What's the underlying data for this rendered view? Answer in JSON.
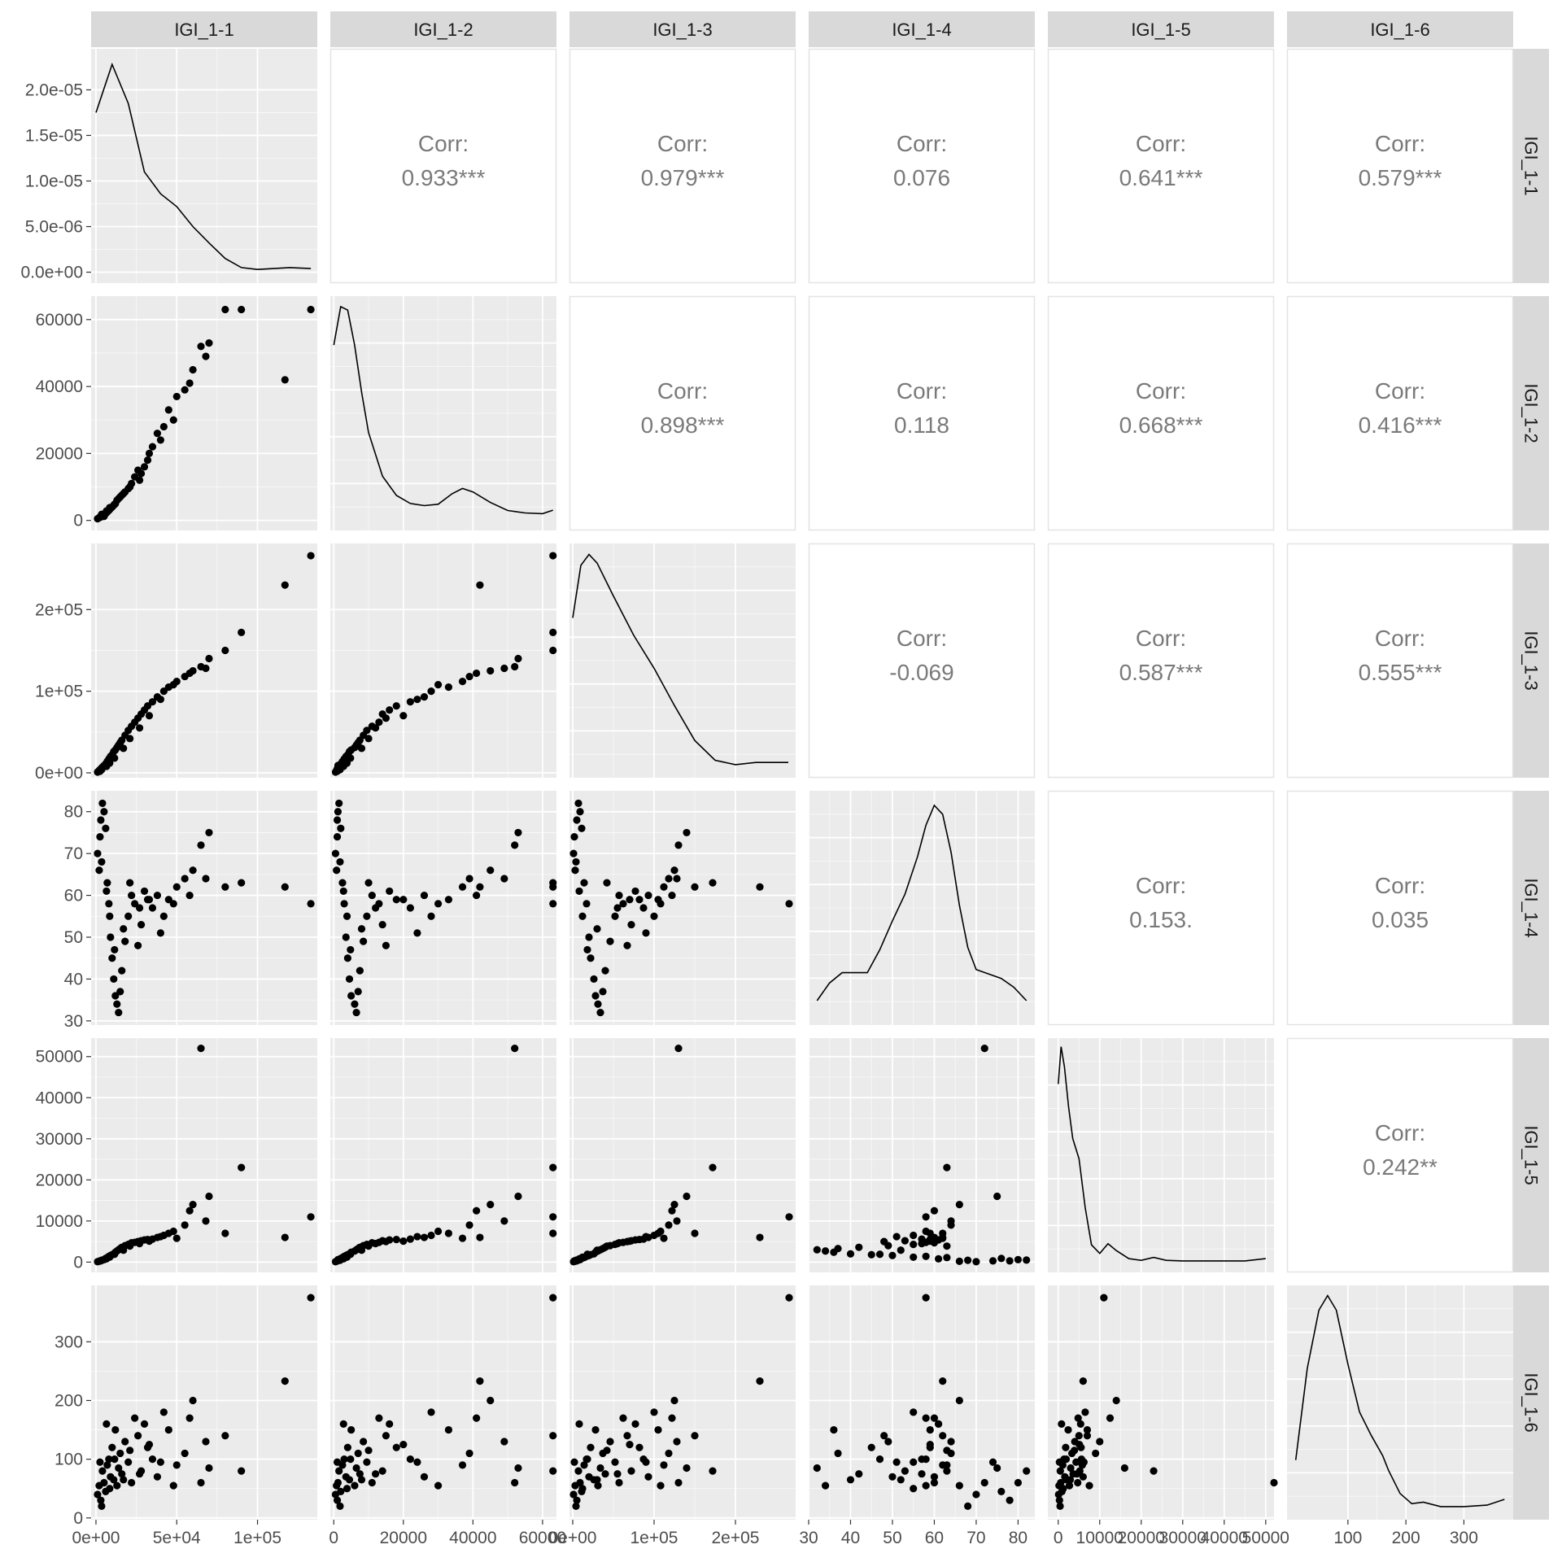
{
  "chart_data": {
    "type": "scatter",
    "title": "",
    "variables": [
      "IGI_1-1",
      "IGI_1-2",
      "IGI_1-3",
      "IGI_1-4",
      "IGI_1-5",
      "IGI_1-6"
    ],
    "corr_label": "Corr:",
    "correlations": [
      {
        "row": 0,
        "col": 1,
        "value": "0.933***"
      },
      {
        "row": 0,
        "col": 2,
        "value": "0.979***"
      },
      {
        "row": 0,
        "col": 3,
        "value": "0.076"
      },
      {
        "row": 0,
        "col": 4,
        "value": "0.641***"
      },
      {
        "row": 0,
        "col": 5,
        "value": "0.579***"
      },
      {
        "row": 1,
        "col": 2,
        "value": "0.898***"
      },
      {
        "row": 1,
        "col": 3,
        "value": "0.118"
      },
      {
        "row": 1,
        "col": 4,
        "value": "0.668***"
      },
      {
        "row": 1,
        "col": 5,
        "value": "0.416***"
      },
      {
        "row": 2,
        "col": 3,
        "value": "-0.069"
      },
      {
        "row": 2,
        "col": 4,
        "value": "0.587***"
      },
      {
        "row": 2,
        "col": 5,
        "value": "0.555***"
      },
      {
        "row": 3,
        "col": 4,
        "value": "0.153."
      },
      {
        "row": 3,
        "col": 5,
        "value": "0.035"
      },
      {
        "row": 4,
        "col": 5,
        "value": "0.242**"
      }
    ],
    "x_axes": [
      {
        "range": [
          -3000,
          137000
        ],
        "ticks": [
          {
            "v": 0,
            "label": "0e+00"
          },
          {
            "v": 50000,
            "label": "5e+04"
          },
          {
            "v": 100000,
            "label": "1e+05"
          }
        ]
      },
      {
        "range": [
          -1000,
          64000
        ],
        "ticks": [
          {
            "v": 0,
            "label": "0"
          },
          {
            "v": 20000,
            "label": "20000"
          },
          {
            "v": 40000,
            "label": "40000"
          },
          {
            "v": 60000,
            "label": "60000"
          }
        ]
      },
      {
        "range": [
          -4000,
          274000
        ],
        "ticks": [
          {
            "v": 0,
            "label": "0e+00"
          },
          {
            "v": 100000,
            "label": "1e+05"
          },
          {
            "v": 200000,
            "label": "2e+05"
          }
        ]
      },
      {
        "range": [
          30,
          84
        ],
        "ticks": [
          {
            "v": 30,
            "label": "30"
          },
          {
            "v": 40,
            "label": "40"
          },
          {
            "v": 50,
            "label": "50"
          },
          {
            "v": 60,
            "label": "60"
          },
          {
            "v": 70,
            "label": "70"
          },
          {
            "v": 80,
            "label": "80"
          }
        ]
      },
      {
        "range": [
          -2500,
          52000
        ],
        "ticks": [
          {
            "v": 0,
            "label": "0"
          },
          {
            "v": 10000,
            "label": "10000"
          },
          {
            "v": 20000,
            "label": "20000"
          },
          {
            "v": 30000,
            "label": "30000"
          },
          {
            "v": 40000,
            "label": "40000"
          },
          {
            "v": 50000,
            "label": "50000"
          }
        ]
      },
      {
        "range": [
          -5,
          385
        ],
        "ticks": [
          {
            "v": 100,
            "label": "100"
          },
          {
            "v": 200,
            "label": "200"
          },
          {
            "v": 300,
            "label": "300"
          }
        ]
      }
    ],
    "y_axes": [
      {
        "range": [
          -1.2e-06,
          2.45e-05
        ],
        "ticks": [
          {
            "v": 0,
            "label": "0.0e+00"
          },
          {
            "v": 5e-06,
            "label": "5.0e-06"
          },
          {
            "v": 1e-05,
            "label": "1.0e-05"
          },
          {
            "v": 1.5e-05,
            "label": "1.5e-05"
          },
          {
            "v": 2e-05,
            "label": "2.0e-05"
          }
        ]
      },
      {
        "range": [
          -3000,
          67000
        ],
        "ticks": [
          {
            "v": 0,
            "label": "0"
          },
          {
            "v": 20000,
            "label": "20000"
          },
          {
            "v": 40000,
            "label": "40000"
          },
          {
            "v": 60000,
            "label": "60000"
          }
        ]
      },
      {
        "range": [
          -6000,
          281000
        ],
        "ticks": [
          {
            "v": 0,
            "label": "0e+00"
          },
          {
            "v": 100000,
            "label": "1e+05"
          },
          {
            "v": 200000,
            "label": "2e+05"
          }
        ]
      },
      {
        "range": [
          29,
          85
        ],
        "ticks": [
          {
            "v": 30,
            "label": "30"
          },
          {
            "v": 40,
            "label": "40"
          },
          {
            "v": 50,
            "label": "50"
          },
          {
            "v": 60,
            "label": "60"
          },
          {
            "v": 70,
            "label": "70"
          },
          {
            "v": 80,
            "label": "80"
          }
        ]
      },
      {
        "range": [
          -2500,
          54500
        ],
        "ticks": [
          {
            "v": 0,
            "label": "0"
          },
          {
            "v": 10000,
            "label": "10000"
          },
          {
            "v": 20000,
            "label": "20000"
          },
          {
            "v": 30000,
            "label": "30000"
          },
          {
            "v": 40000,
            "label": "40000"
          },
          {
            "v": 50000,
            "label": "50000"
          }
        ]
      },
      {
        "range": [
          -3,
          396
        ],
        "ticks": [
          {
            "v": 0,
            "label": "0"
          },
          {
            "v": 100,
            "label": "100"
          },
          {
            "v": 200,
            "label": "200"
          },
          {
            "v": 300,
            "label": "300"
          }
        ]
      }
    ],
    "densities": [
      {
        "var": "IGI_1-1",
        "x": [
          0,
          10000,
          20000,
          30000,
          40000,
          50000,
          60000,
          70000,
          80000,
          90000,
          100000,
          110000,
          120000,
          133000
        ],
        "y": [
          1.75e-05,
          2.28e-05,
          1.85e-05,
          1.1e-05,
          8.6e-06,
          7.2e-06,
          5e-06,
          3.2e-06,
          1.5e-06,
          5e-07,
          3e-07,
          4e-07,
          5e-07,
          4e-07
        ]
      },
      {
        "var": "IGI_1-2",
        "x": [
          0,
          2000,
          4000,
          6000,
          8000,
          10000,
          14000,
          18000,
          22000,
          26000,
          30000,
          34000,
          37000,
          40000,
          45000,
          50000,
          55000,
          60000,
          63000
        ],
        "y": [
          5.05e-05,
          6.15e-05,
          6.05e-05,
          5.05e-05,
          3.7e-05,
          2.55e-05,
          1.3e-05,
          7.5e-06,
          5.2e-06,
          4.6e-06,
          5e-06,
          8e-06,
          9.5e-06,
          8.5e-06,
          5.5e-06,
          3.2e-06,
          2.5e-06,
          2.3e-06,
          3.3e-06
        ]
      },
      {
        "var": "IGI_1-3",
        "x": [
          0,
          10000,
          20000,
          30000,
          50000,
          75000,
          100000,
          125000,
          150000,
          175000,
          200000,
          225000,
          265000
        ],
        "y": [
          6.8e-06,
          9.2e-06,
          9.7e-06,
          9.3e-06,
          7.8e-06,
          6e-06,
          4.5e-06,
          2.8e-06,
          1.2e-06,
          3e-07,
          1e-07,
          2e-07,
          2e-07
        ]
      },
      {
        "var": "IGI_1-4",
        "x": [
          32,
          35,
          38,
          41,
          44,
          47,
          50,
          53,
          56,
          58,
          60,
          62,
          64,
          66,
          68,
          70,
          73,
          76,
          79,
          82
        ],
        "y": [
          0.0055,
          0.0095,
          0.0118,
          0.0118,
          0.0118,
          0.017,
          0.0235,
          0.0295,
          0.038,
          0.045,
          0.0495,
          0.0475,
          0.039,
          0.027,
          0.0175,
          0.0125,
          0.0115,
          0.0105,
          0.0085,
          0.0055
        ]
      },
      {
        "var": "IGI_1-5",
        "x": [
          0,
          700,
          1500,
          2500,
          3500,
          5000,
          6500,
          8000,
          10000,
          12000,
          14000,
          17000,
          20000,
          23000,
          26000,
          30000,
          35000,
          40000,
          45000,
          50000
        ],
        "y": [
          0.00031,
          0.000375,
          0.00034,
          0.00027,
          0.000215,
          0.00018,
          9.5e-05,
          3e-05,
          1.5e-05,
          3.2e-05,
          2e-05,
          6e-06,
          3e-06,
          8e-06,
          3e-06,
          2e-06,
          2e-06,
          2e-06,
          2e-06,
          6e-06
        ]
      },
      {
        "var": "IGI_1-6",
        "x": [
          10,
          30,
          50,
          65,
          80,
          100,
          120,
          140,
          160,
          170,
          190,
          210,
          230,
          260,
          300,
          340,
          370
        ],
        "y": [
          0.0035,
          0.0098,
          0.0138,
          0.0148,
          0.0138,
          0.0101,
          0.0068,
          0.0052,
          0.0038,
          0.0028,
          0.0012,
          0.0005,
          0.0006,
          0.0003,
          0.0003,
          0.0004,
          0.0008
        ]
      }
    ],
    "density_ylim": [
      [
        -1.2e-06,
        2.45e-05
      ],
      [
        -2.5e-06,
        6.45e-05
      ],
      [
        -5e-07,
        1.02e-05
      ],
      [
        0.0,
        0.0528
      ],
      [
        -1.8e-05,
        0.00039
      ],
      [
        -0.0006,
        0.0155
      ]
    ],
    "points": [
      [
        1000,
        500,
        1000,
        70,
        100,
        40
      ],
      [
        2000,
        800,
        3000,
        66,
        200,
        55
      ],
      [
        3000,
        1000,
        5000,
        78,
        300,
        30
      ],
      [
        4000,
        1500,
        7000,
        82,
        500,
        80
      ],
      [
        5000,
        1200,
        9000,
        80,
        600,
        60
      ],
      [
        6000,
        2000,
        11000,
        76,
        900,
        45
      ],
      [
        7000,
        2500,
        14000,
        63,
        1100,
        90
      ],
      [
        8000,
        3000,
        17000,
        58,
        1400,
        100
      ],
      [
        9000,
        3500,
        20000,
        50,
        1600,
        70
      ],
      [
        10000,
        4000,
        22000,
        45,
        1800,
        120
      ],
      [
        11000,
        4500,
        26000,
        40,
        2000,
        65
      ],
      [
        12000,
        5000,
        28000,
        36,
        2400,
        150
      ],
      [
        13000,
        6000,
        31000,
        34,
        2700,
        55
      ],
      [
        14000,
        6500,
        34000,
        32,
        3000,
        85
      ],
      [
        15000,
        7000,
        37000,
        37,
        3300,
        110
      ],
      [
        16000,
        7500,
        40000,
        42,
        3600,
        75
      ],
      [
        18000,
        8500,
        46000,
        49,
        4000,
        130
      ],
      [
        20000,
        9500,
        52000,
        55,
        4300,
        95
      ],
      [
        22000,
        11000,
        57000,
        60,
        4700,
        60
      ],
      [
        24000,
        13000,
        62000,
        58,
        4800,
        170
      ],
      [
        26000,
        15000,
        67000,
        48,
        5000,
        140
      ],
      [
        28000,
        14000,
        72000,
        53,
        5200,
        80
      ],
      [
        30000,
        16000,
        77000,
        61,
        5400,
        160
      ],
      [
        32000,
        18000,
        82000,
        59,
        5500,
        120
      ],
      [
        35000,
        22000,
        87000,
        57,
        5600,
        100
      ],
      [
        38000,
        26000,
        93000,
        60,
        6000,
        70
      ],
      [
        42000,
        28000,
        100000,
        55,
        6500,
        180
      ],
      [
        45000,
        33000,
        105000,
        59,
        7000,
        150
      ],
      [
        50000,
        37000,
        112000,
        62,
        5800,
        90
      ],
      [
        55000,
        39000,
        118000,
        64,
        9000,
        110
      ],
      [
        60000,
        45000,
        125000,
        66,
        14000,
        200
      ],
      [
        65000,
        52000,
        130000,
        72,
        52000,
        60
      ],
      [
        70000,
        53000,
        140000,
        75,
        16000,
        85
      ],
      [
        80000,
        63000,
        150000,
        62,
        7000,
        140
      ],
      [
        90000,
        63000,
        172000,
        63,
        23000,
        80
      ],
      [
        117000,
        42000,
        230000,
        62,
        6000,
        233
      ],
      [
        133000,
        63000,
        266000,
        58,
        11000,
        375
      ],
      [
        2500,
        1000,
        2000,
        74,
        300,
        95
      ],
      [
        3500,
        1800,
        4000,
        68,
        450,
        20
      ],
      [
        6500,
        2800,
        8000,
        61,
        800,
        160
      ],
      [
        8500,
        3800,
        12000,
        55,
        1200,
        50
      ],
      [
        11500,
        4800,
        18000,
        47,
        1900,
        100
      ],
      [
        17000,
        8000,
        30000,
        52,
        2900,
        65
      ],
      [
        21000,
        10000,
        42000,
        63,
        3900,
        115
      ],
      [
        27000,
        12000,
        55000,
        57,
        4500,
        75
      ],
      [
        33000,
        20000,
        70000,
        59,
        5100,
        125
      ],
      [
        40000,
        24000,
        90000,
        51,
        6200,
        95
      ],
      [
        48000,
        30000,
        108000,
        58,
        7500,
        55
      ],
      [
        58000,
        41000,
        122000,
        60,
        12500,
        170
      ],
      [
        68000,
        49000,
        128000,
        64,
        10000,
        130
      ]
    ]
  },
  "colors": {
    "panel_bg": "#ebebeb",
    "grid_major": "#ffffff",
    "strip_bg": "#d9d9d9",
    "point": "#000000",
    "line": "#000000",
    "corr_text": "#7a7a7a",
    "corr_panel_border": "#e3e3e3"
  }
}
